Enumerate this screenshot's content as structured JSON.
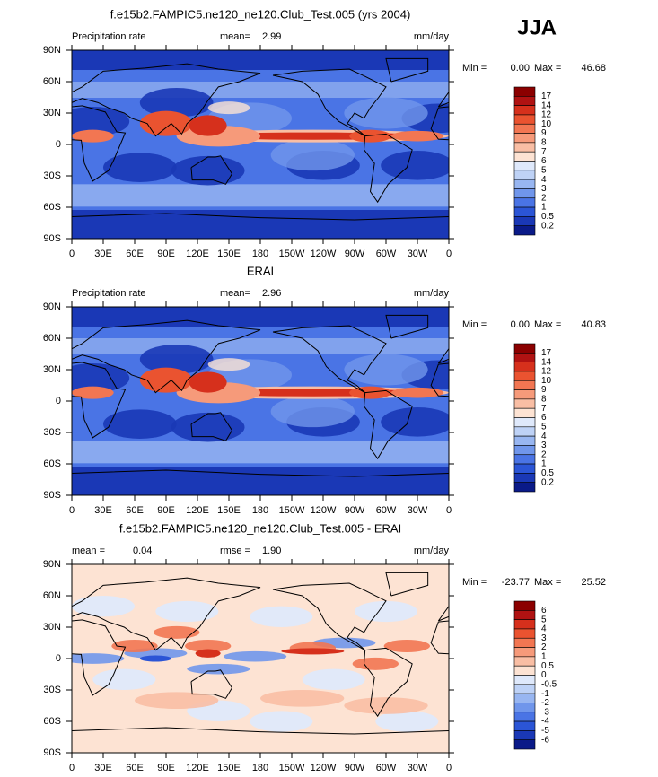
{
  "header": {
    "season": "JJA"
  },
  "axes": {
    "lat_ticks": [
      "90N",
      "60N",
      "30N",
      "0",
      "30S",
      "60S",
      "90S"
    ],
    "lon_ticks": [
      "0",
      "30E",
      "60E",
      "90E",
      "120E",
      "150E",
      "180",
      "150W",
      "120W",
      "90W",
      "60W",
      "30W",
      "0"
    ]
  },
  "panels": [
    {
      "kind": "field",
      "title": "f.e15b2.FAMPIC5.ne120_ne120.Club_Test.005 (yrs 2004)",
      "left_label": "Precipitation rate",
      "center_label": "mean=",
      "center_value": "2.99",
      "unit": "mm/day",
      "min_label": "Min =",
      "min_value": "0.00",
      "max_label": "Max =",
      "max_value": "46.68",
      "colorbar": {
        "labels": [
          "17",
          "14",
          "12",
          "10",
          "9",
          "8",
          "7",
          "6",
          "5",
          "4",
          "3",
          "2",
          "1",
          "0.5",
          "0.2"
        ],
        "colors": [
          "#8b0000",
          "#b01212",
          "#d6301c",
          "#ea5330",
          "#f27652",
          "#f69a7a",
          "#f9bea4",
          "#fde3d3",
          "#dfe9fb",
          "#bed2f6",
          "#98b6f1",
          "#7096eb",
          "#4a74e5",
          "#2b55d6",
          "#1a38b6",
          "#0a1a88"
        ]
      }
    },
    {
      "kind": "field",
      "title": "ERAI",
      "left_label": "Precipitation rate",
      "center_label": "mean=",
      "center_value": "2.96",
      "unit": "mm/day",
      "min_label": "Min =",
      "min_value": "0.00",
      "max_label": "Max =",
      "max_value": "40.83",
      "colorbar": {
        "labels": [
          "17",
          "14",
          "12",
          "10",
          "9",
          "8",
          "7",
          "6",
          "5",
          "4",
          "3",
          "2",
          "1",
          "0.5",
          "0.2"
        ],
        "colors": [
          "#8b0000",
          "#b01212",
          "#d6301c",
          "#ea5330",
          "#f27652",
          "#f69a7a",
          "#f9bea4",
          "#fde3d3",
          "#dfe9fb",
          "#bed2f6",
          "#98b6f1",
          "#7096eb",
          "#4a74e5",
          "#2b55d6",
          "#1a38b6",
          "#0a1a88"
        ]
      }
    },
    {
      "kind": "difference",
      "title": "f.e15b2.FAMPIC5.ne120_ne120.Club_Test.005 - ERAI",
      "left_label": "mean =",
      "left_value": "0.04",
      "center_label": "rmse =",
      "center_value": "1.90",
      "unit": "mm/day",
      "min_label": "Min =",
      "min_value": "-23.77",
      "max_label": "Max =",
      "max_value": "25.52",
      "colorbar": {
        "labels": [
          "6",
          "5",
          "4",
          "3",
          "2",
          "1",
          "0.5",
          "0",
          "-0.5",
          "-1",
          "-2",
          "-3",
          "-4",
          "-5",
          "-6"
        ],
        "colors": [
          "#8b0000",
          "#b01212",
          "#d6301c",
          "#ea5330",
          "#f27652",
          "#f69a7a",
          "#f9bea4",
          "#fde3d3",
          "#dfe9fb",
          "#bed2f6",
          "#98b6f1",
          "#7096eb",
          "#4a74e5",
          "#2b55d6",
          "#1a38b6",
          "#0a1a88"
        ]
      }
    }
  ]
}
